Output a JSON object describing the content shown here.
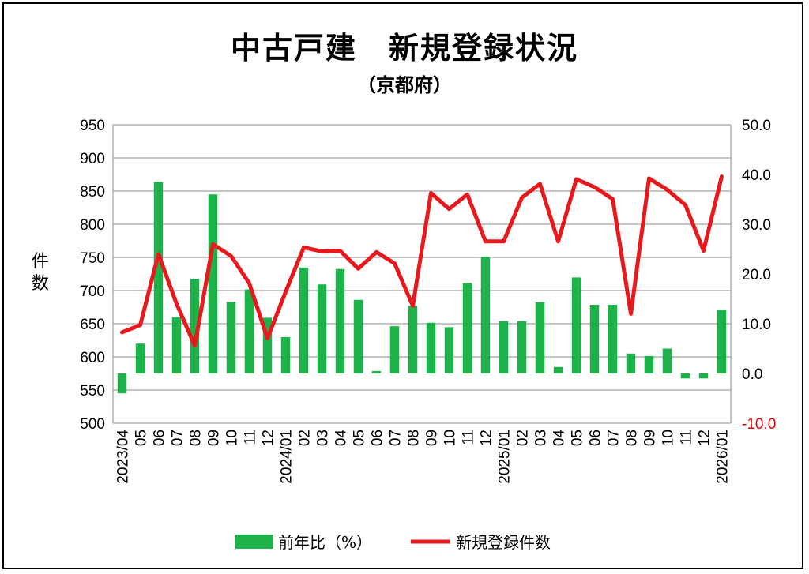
{
  "chart_data": {
    "type": "bar+line",
    "title": "中古戸建　新規登録状況",
    "subtitle": "（京都府）",
    "ylabel_left": "件数",
    "categories": [
      "2023/04",
      "05",
      "06",
      "07",
      "08",
      "09",
      "10",
      "11",
      "12",
      "2024/01",
      "02",
      "03",
      "04",
      "05",
      "06",
      "07",
      "08",
      "09",
      "10",
      "11",
      "12",
      "2025/01",
      "02",
      "03",
      "04",
      "05",
      "06",
      "07",
      "08",
      "09",
      "10",
      "11",
      "12",
      "2026/01"
    ],
    "series": [
      {
        "name": "前年比（%）",
        "type": "bar",
        "axis": "right",
        "color": "#1db34a",
        "values": [
          -4.0,
          6.0,
          38.5,
          11.3,
          19.0,
          36.0,
          14.4,
          16.9,
          11.2,
          7.3,
          21.3,
          17.9,
          21.0,
          14.8,
          0.5,
          9.5,
          13.6,
          10.2,
          9.3,
          18.2,
          23.5,
          10.5,
          10.5,
          14.3,
          1.3,
          19.3,
          13.8,
          13.8,
          4.0,
          3.5,
          5.0,
          -1.0,
          -1.0,
          12.8
        ]
      },
      {
        "name": "新規登録件数",
        "type": "line",
        "axis": "left",
        "color": "#e8191d",
        "values": [
          637,
          648,
          755,
          680,
          617,
          770,
          752,
          711,
          628,
          698,
          765,
          759,
          760,
          733,
          758,
          741,
          677,
          847,
          823,
          845,
          774,
          774,
          840,
          861,
          774,
          868,
          856,
          838,
          665,
          869,
          852,
          829,
          760,
          872
        ]
      }
    ],
    "yaxis_left": {
      "min": 500,
      "max": 950,
      "step": 50,
      "ticks": [
        "500",
        "550",
        "600",
        "650",
        "700",
        "750",
        "800",
        "850",
        "900",
        "950"
      ]
    },
    "yaxis_right": {
      "min": -10,
      "max": 50,
      "step": 10,
      "ticks": [
        "-10.0",
        "0.0",
        "10.0",
        "20.0",
        "30.0",
        "40.0",
        "50.0"
      ],
      "negative_color": "#e00000"
    },
    "grid": true,
    "legend_position": "bottom"
  }
}
